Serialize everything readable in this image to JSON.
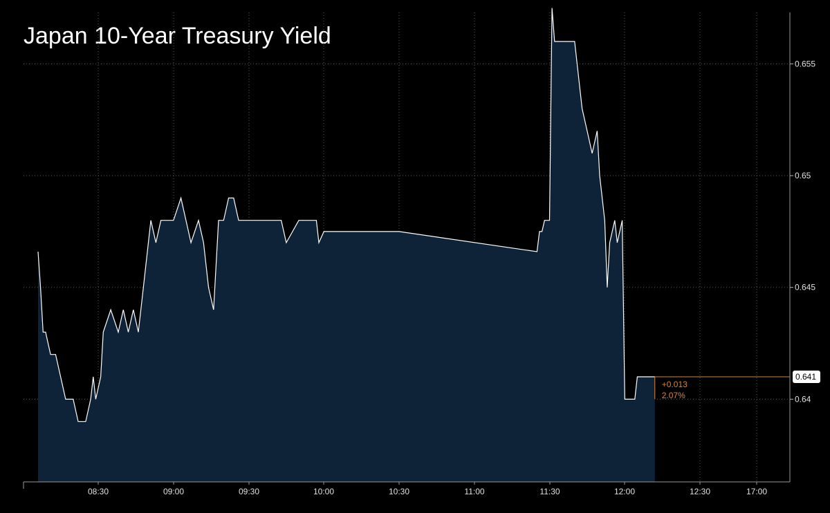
{
  "chart_data": {
    "type": "area",
    "title": "Japan 10-Year Treasury Yield",
    "xlabel": "",
    "ylabel": "",
    "x_tick_labels": [
      "08:30",
      "09:00",
      "09:30",
      "10:00",
      "10:30",
      "11:00",
      "11:30",
      "12:00",
      "12:30",
      "17:00"
    ],
    "y_ticks": [
      "0.64",
      "0.645",
      "0.65",
      "0.655"
    ],
    "ylim": [
      0.6363,
      0.6573
    ],
    "grid": true,
    "colors": {
      "fill": "#0e2238",
      "line": "#ffffff",
      "annotation": "#d7843a",
      "last_label_bg": "#ffffff"
    },
    "series": [
      {
        "x": [
          "08:06",
          "08:07",
          "08:08",
          "08:09",
          "08:11",
          "08:12",
          "08:13",
          "08:17",
          "08:20",
          "08:22",
          "08:25",
          "08:27",
          "08:28",
          "08:29",
          "08:31",
          "08:32",
          "08:35",
          "08:38",
          "08:40",
          "08:42",
          "08:44",
          "08:46",
          "08:48",
          "08:50",
          "08:51",
          "08:53",
          "08:55",
          "09:00",
          "09:03",
          "09:05",
          "09:07",
          "09:10",
          "09:12",
          "09:14",
          "09:16",
          "09:18",
          "09:20",
          "09:22",
          "09:24",
          "09:26",
          "09:28",
          "09:30",
          "09:33",
          "09:35",
          "09:38",
          "09:40",
          "09:43",
          "09:45",
          "09:50",
          "09:53",
          "09:55",
          "09:57",
          "09:58",
          "10:00",
          "10:30",
          "11:25",
          "11:26",
          "11:27",
          "11:28",
          "11:29",
          "11:30",
          "11:31",
          "11:32",
          "11:33",
          "11:34",
          "11:36",
          "11:37",
          "11:38",
          "11:39",
          "11:40",
          "11:41",
          "11:42",
          "11:43",
          "11:45",
          "11:47",
          "11:49",
          "11:50",
          "11:52",
          "11:53",
          "11:54",
          "11:56",
          "11:57",
          "11:59",
          "12:00",
          "12:01",
          "12:02",
          "12:03",
          "12:04",
          "12:05",
          "12:06",
          "12:07",
          "12:08",
          "12:09",
          "12:10",
          "12:11",
          "12:12"
        ],
        "values": [
          0.6466,
          0.645,
          0.643,
          0.643,
          0.642,
          0.642,
          0.642,
          0.64,
          0.64,
          0.639,
          0.639,
          0.64,
          0.641,
          0.64,
          0.641,
          0.643,
          0.644,
          0.643,
          0.644,
          0.643,
          0.644,
          0.643,
          0.645,
          0.647,
          0.648,
          0.647,
          0.648,
          0.648,
          0.649,
          0.648,
          0.647,
          0.648,
          0.647,
          0.645,
          0.644,
          0.648,
          0.648,
          0.649,
          0.649,
          0.648,
          0.648,
          0.648,
          0.648,
          0.648,
          0.648,
          0.648,
          0.648,
          0.647,
          0.648,
          0.648,
          0.648,
          0.648,
          0.647,
          0.6475,
          0.6475,
          0.6466,
          0.6475,
          0.6475,
          0.648,
          0.648,
          0.648,
          0.6575,
          0.656,
          0.656,
          0.656,
          0.656,
          0.656,
          0.656,
          0.656,
          0.656,
          0.655,
          0.654,
          0.653,
          0.652,
          0.651,
          0.652,
          0.65,
          0.648,
          0.645,
          0.647,
          0.648,
          0.647,
          0.648,
          0.64,
          0.64,
          0.64,
          0.64,
          0.64,
          0.641,
          0.641,
          0.641,
          0.641,
          0.641,
          0.641,
          0.641,
          0.641
        ]
      }
    ],
    "last_value": "0.641",
    "change_abs": "+0.013",
    "change_pct": "2.07%"
  }
}
